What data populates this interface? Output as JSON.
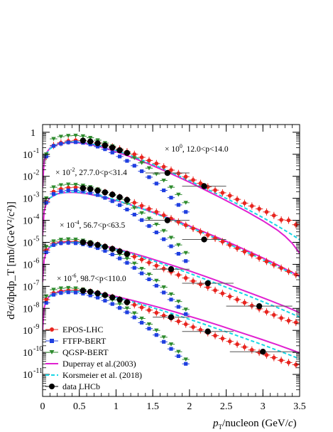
{
  "chart_data": {
    "type": "scatter",
    "xlim": [
      0,
      3.5
    ],
    "ylim_log10": [
      -12,
      0.35
    ],
    "y_scale": "log",
    "grid": false,
    "legend_position": "bottom-left",
    "x_ticks": [
      "0",
      "0.5",
      "1",
      "1.5",
      "2",
      "2.5",
      "3",
      "3.5"
    ],
    "y_ticks": [
      "1",
      "10",
      "10",
      "10",
      "10",
      "10",
      "10",
      "10",
      "10",
      "10",
      "10",
      "10"
    ],
    "y_tick_exponents": [
      "",
      "-1",
      "-2",
      "-3",
      "-4",
      "-5",
      "-6",
      "-7",
      "-8",
      "-9",
      "-10",
      "-11"
    ],
    "xlabel": {
      "p": "p",
      "T": "T",
      "rest": "/nucleon (GeV/",
      "c": "c",
      "close": ")"
    },
    "ylabel": "d²σ/dpdp_T [mb/(GeV²/c²)]",
    "annotations": [
      {
        "scale": "× 10",
        "exp": "0",
        "range": ", 12.0<p<14.0"
      },
      {
        "scale": "× 10",
        "exp": "-2",
        "range": ", 27.7.0<p<31.4"
      },
      {
        "scale": "× 10",
        "exp": "-4",
        "range": ", 56.7<p<63.5"
      },
      {
        "scale": "× 10",
        "exp": "-6",
        "range": ", 98.7<p<110.0"
      }
    ],
    "legend": [
      {
        "label": "EPOS-LHC",
        "color": "#e8251f",
        "marker": "circle"
      },
      {
        "label": "FTFP-BERT",
        "color": "#1f3fe0",
        "marker": "square"
      },
      {
        "label": "QGSP-BERT",
        "color": "#2e8b2e",
        "marker": "triangle-down"
      },
      {
        "label": "Duperray et al.(2003)",
        "color": "#e020d0",
        "marker": "line"
      },
      {
        "label": "Korsmeier et al. (2018)",
        "color": "#17d7e6",
        "marker": "dashed"
      },
      {
        "label": "data LHCb",
        "color": "#000000",
        "marker": "circle"
      }
    ],
    "series": [
      {
        "name": "EPOS-LHC",
        "color": "#e8251f",
        "x": [
          0.05,
          0.15,
          0.25,
          0.35,
          0.45,
          0.55,
          0.65,
          0.75,
          0.85,
          0.95,
          1.05,
          1.15,
          1.25,
          1.35,
          1.45,
          1.55,
          1.65,
          1.75,
          1.85,
          1.95,
          2.05,
          2.15,
          2.25,
          2.35,
          2.45,
          2.55,
          2.65,
          2.75,
          2.85,
          2.95,
          3.05,
          3.15,
          3.25,
          3.35,
          3.45
        ],
        "groups": [
          [
            -1.1,
            -0.6,
            -0.48,
            -0.4,
            -0.37,
            -0.38,
            -0.42,
            -0.48,
            -0.56,
            -0.66,
            -0.76,
            -0.88,
            -1.0,
            -1.14,
            -1.28,
            -1.42,
            -1.57,
            -1.72,
            -1.87,
            -2.02,
            -2.17,
            -2.32,
            -2.48,
            -2.63,
            -2.75,
            -2.88,
            -3.05,
            -3.22,
            -3.35,
            -3.48,
            -3.62,
            -3.78,
            -3.98,
            -4.0,
            -4.2
          ],
          [
            -3.15,
            -2.7,
            -2.58,
            -2.52,
            -2.5,
            -2.53,
            -2.58,
            -2.65,
            -2.73,
            -2.83,
            -2.95,
            -3.07,
            -3.2,
            -3.34,
            -3.48,
            -3.62,
            -3.77,
            -3.92,
            -4.07,
            -4.22,
            -4.37,
            -4.52,
            -4.67,
            -4.82,
            -4.97,
            -5.12,
            -5.27,
            -5.42,
            -5.57,
            -5.72,
            -5.87,
            -6.02,
            -6.17,
            -6.32,
            -6.47
          ],
          [
            -5.35,
            -5.05,
            -4.98,
            -4.96,
            -4.96,
            -5.0,
            -5.05,
            -5.12,
            -5.2,
            -5.3,
            -5.41,
            -5.53,
            -5.65,
            -5.78,
            -5.92,
            -6.06,
            -6.2,
            -6.34,
            -6.48,
            -6.62,
            -6.76,
            -6.9,
            -7.04,
            -7.18,
            -7.32,
            -7.46,
            -7.6,
            -7.74,
            -7.88,
            -8.02,
            -8.16,
            -8.3,
            -8.44,
            -8.56,
            -8.64
          ],
          [
            -7.6,
            -7.3,
            -7.22,
            -7.18,
            -7.18,
            -7.2,
            -7.25,
            -7.32,
            -7.4,
            -7.5,
            -7.6,
            -7.72,
            -7.84,
            -7.96,
            -8.08,
            -8.2,
            -8.33,
            -8.46,
            -8.59,
            -8.72,
            -8.85,
            -8.98,
            -9.11,
            -9.24,
            -9.37,
            -9.5,
            -9.63,
            -9.76,
            -9.89,
            -10.0,
            -10.12,
            -10.24,
            -10.36,
            -10.46,
            -10.56
          ]
        ]
      },
      {
        "name": "FTFP-BERT",
        "color": "#1f3fe0",
        "x": [
          0.05,
          0.15,
          0.25,
          0.35,
          0.45,
          0.55,
          0.65,
          0.75,
          0.85,
          0.95,
          1.05,
          1.15,
          1.25,
          1.35,
          1.45,
          1.55,
          1.65,
          1.75,
          1.85,
          1.95
        ],
        "groups": [
          [
            -1.1,
            -0.62,
            -0.52,
            -0.46,
            -0.45,
            -0.48,
            -0.55,
            -0.65,
            -0.77,
            -0.92,
            -1.1,
            -1.3,
            -1.52,
            -1.77,
            -2.04,
            -2.33,
            -2.64,
            -2.97,
            -3.3,
            -3.62
          ],
          [
            -3.2,
            -2.8,
            -2.68,
            -2.64,
            -2.64,
            -2.68,
            -2.75,
            -2.85,
            -2.98,
            -3.13,
            -3.31,
            -3.51,
            -3.74,
            -3.99,
            -4.26,
            -4.55,
            -4.86,
            -5.18,
            -5.52,
            -5.85
          ],
          [
            -5.45,
            -5.12,
            -5.04,
            -5.02,
            -5.04,
            -5.09,
            -5.16,
            -5.26,
            -5.39,
            -5.55,
            -5.73,
            -5.93,
            -6.16,
            -6.41,
            -6.68,
            -6.97,
            -7.28,
            -7.6,
            -7.93,
            -8.26
          ],
          [
            -7.75,
            -7.38,
            -7.3,
            -7.27,
            -7.28,
            -7.33,
            -7.41,
            -7.51,
            -7.65,
            -7.8,
            -7.98,
            -8.18,
            -8.41,
            -8.65,
            -8.92,
            -9.21,
            -9.52,
            -9.84,
            -10.17,
            -10.52
          ]
        ]
      },
      {
        "name": "QGSP-BERT",
        "color": "#2e8b2e",
        "x": [
          0.05,
          0.15,
          0.25,
          0.35,
          0.45,
          0.55,
          0.65,
          0.75,
          0.85,
          0.95,
          1.05,
          1.15,
          1.25,
          1.35,
          1.45,
          1.55,
          1.65,
          1.75,
          1.85,
          1.95
        ],
        "groups": [
          [
            -1.0,
            -0.3,
            -0.2,
            -0.16,
            -0.15,
            -0.18,
            -0.25,
            -0.36,
            -0.49,
            -0.63,
            -0.79,
            -0.97,
            -1.17,
            -1.39,
            -1.63,
            -1.9,
            -2.19,
            -2.5,
            -2.83,
            -3.2
          ],
          [
            -3.0,
            -2.5,
            -2.4,
            -2.37,
            -2.38,
            -2.42,
            -2.49,
            -2.59,
            -2.72,
            -2.87,
            -3.04,
            -3.23,
            -3.44,
            -3.67,
            -3.92,
            -4.19,
            -4.48,
            -4.79,
            -5.12,
            -5.48
          ],
          [
            -5.2,
            -4.95,
            -4.88,
            -4.86,
            -4.87,
            -4.92,
            -4.99,
            -5.09,
            -5.22,
            -5.37,
            -5.55,
            -5.74,
            -5.96,
            -6.2,
            -6.46,
            -6.74,
            -7.04,
            -7.36,
            -7.69,
            -8.05
          ],
          [
            -7.45,
            -7.15,
            -7.09,
            -7.07,
            -7.09,
            -7.14,
            -7.22,
            -7.33,
            -7.46,
            -7.62,
            -7.8,
            -8.0,
            -8.22,
            -8.46,
            -8.72,
            -9.0,
            -9.31,
            -9.63,
            -9.97,
            -10.32
          ]
        ]
      },
      {
        "name": "Duperray et al.(2003)",
        "color": "#e020d0",
        "x": [
          0.0,
          0.02,
          0.05,
          0.1,
          0.2,
          0.3,
          0.4,
          0.5,
          0.6,
          0.8,
          1.0,
          1.2,
          1.4,
          1.6,
          1.8,
          2.0,
          2.2,
          2.4,
          2.6,
          2.8,
          3.0,
          3.2,
          3.3,
          3.4,
          3.5
        ],
        "groups": [
          [
            -2.5,
            -1.3,
            -0.95,
            -0.72,
            -0.55,
            -0.48,
            -0.46,
            -0.48,
            -0.52,
            -0.67,
            -0.88,
            -1.12,
            -1.38,
            -1.66,
            -1.96,
            -2.27,
            -2.6,
            -2.93,
            -3.28,
            -3.64,
            -4.02,
            -4.45,
            -4.72,
            -5.05,
            -5.5
          ],
          [
            -4.7,
            -3.6,
            -3.22,
            -2.98,
            -2.8,
            -2.74,
            -2.73,
            -2.75,
            -2.79,
            -2.92,
            -3.1,
            -3.3,
            -3.52,
            -3.75,
            -4.0,
            -4.26,
            -4.53,
            -4.81,
            -5.1,
            -5.4,
            -5.71,
            -6.03,
            -6.2,
            -6.37,
            -6.55
          ],
          [
            -6.8,
            -5.8,
            -5.42,
            -5.2,
            -5.03,
            -4.98,
            -4.97,
            -4.99,
            -5.03,
            -5.14,
            -5.29,
            -5.47,
            -5.66,
            -5.87,
            -6.08,
            -6.3,
            -6.53,
            -6.77,
            -7.02,
            -7.27,
            -7.52,
            -7.78,
            -7.91,
            -8.05,
            -8.2
          ],
          [
            -9.0,
            -8.0,
            -7.63,
            -7.42,
            -7.26,
            -7.2,
            -7.19,
            -7.2,
            -7.23,
            -7.33,
            -7.46,
            -7.62,
            -7.79,
            -7.97,
            -8.16,
            -8.36,
            -8.56,
            -8.77,
            -8.99,
            -9.21,
            -9.43,
            -9.66,
            -9.78,
            -9.9,
            -10.02
          ]
        ]
      },
      {
        "name": "Korsmeier et al. (2018)",
        "color": "#17d7e6",
        "x": [
          0.05,
          0.1,
          0.2,
          0.3,
          0.4,
          0.5,
          0.6,
          0.8,
          1.0,
          1.2,
          1.4,
          1.6,
          1.8,
          2.0,
          2.2,
          2.4,
          2.6,
          2.8,
          3.0,
          3.2,
          3.4,
          3.5
        ],
        "groups": [
          [
            -1.0,
            -0.75,
            -0.55,
            -0.47,
            -0.44,
            -0.45,
            -0.49,
            -0.63,
            -0.83,
            -1.06,
            -1.32,
            -1.6,
            -1.9,
            -2.2,
            -2.52,
            -2.84,
            -3.17,
            -3.52,
            -3.88,
            -4.26,
            -4.66,
            -4.88
          ],
          [
            -3.2,
            -2.98,
            -2.8,
            -2.73,
            -2.71,
            -2.73,
            -2.77,
            -2.9,
            -3.08,
            -3.3,
            -3.53,
            -3.78,
            -4.04,
            -4.31,
            -4.59,
            -4.88,
            -5.18,
            -5.48,
            -5.79,
            -6.1,
            -6.42,
            -6.6
          ],
          [
            -5.45,
            -5.22,
            -5.05,
            -4.99,
            -4.98,
            -5.0,
            -5.04,
            -5.16,
            -5.32,
            -5.51,
            -5.72,
            -5.94,
            -6.17,
            -6.41,
            -6.66,
            -6.91,
            -7.17,
            -7.43,
            -7.7,
            -7.97,
            -8.25,
            -8.4
          ],
          [
            -7.7,
            -7.45,
            -7.28,
            -7.22,
            -7.21,
            -7.22,
            -7.26,
            -7.37,
            -7.51,
            -7.68,
            -7.87,
            -8.07,
            -8.28,
            -8.5,
            -8.72,
            -8.95,
            -9.18,
            -9.42,
            -9.66,
            -9.91,
            -10.16,
            -10.3
          ]
        ]
      },
      {
        "name": "data LHCb",
        "color": "#000000",
        "groups": [
          {
            "x": [
              0.55,
              0.65,
              0.75,
              0.85,
              0.95,
              1.05,
              1.15,
              1.7,
              2.2
            ],
            "y": [
              -0.38,
              -0.42,
              -0.5,
              -0.6,
              -0.7,
              -0.82,
              -0.94,
              -1.85,
              -2.45
            ],
            "xerr": [
              0.05,
              0.05,
              0.05,
              0.05,
              0.05,
              0.05,
              0.05,
              0.3,
              0.3
            ]
          },
          {
            "x": [
              0.55,
              0.65,
              0.75,
              0.85,
              0.95,
              1.05,
              1.15,
              1.7,
              2.2
            ],
            "y": [
              -2.54,
              -2.58,
              -2.65,
              -2.73,
              -2.83,
              -2.95,
              -3.07,
              -4.0,
              -4.87
            ],
            "xerr": [
              0.05,
              0.05,
              0.05,
              0.05,
              0.05,
              0.05,
              0.05,
              0.3,
              0.3
            ]
          },
          {
            "x": [
              0.55,
              0.65,
              0.75,
              0.85,
              0.95,
              1.05,
              1.15,
              1.75,
              2.25,
              2.95
            ],
            "y": [
              -5.0,
              -5.05,
              -5.12,
              -5.2,
              -5.3,
              -5.41,
              -5.53,
              -6.22,
              -6.86,
              -7.9
            ],
            "xerr": [
              0.05,
              0.05,
              0.05,
              0.05,
              0.05,
              0.05,
              0.05,
              0.25,
              0.35,
              0.45
            ]
          },
          {
            "x": [
              0.55,
              0.65,
              0.75,
              0.85,
              0.95,
              1.05,
              1.15,
              1.75,
              2.25,
              3.0
            ],
            "y": [
              -7.2,
              -7.25,
              -7.32,
              -7.4,
              -7.5,
              -7.6,
              -7.72,
              -8.4,
              -9.05,
              -9.97
            ],
            "xerr": [
              0.05,
              0.05,
              0.05,
              0.05,
              0.05,
              0.05,
              0.05,
              0.25,
              0.35,
              0.45
            ]
          }
        ]
      }
    ]
  }
}
